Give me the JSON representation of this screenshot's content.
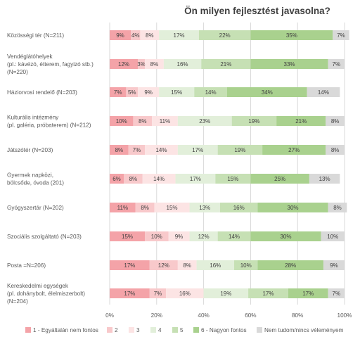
{
  "chart_data": {
    "type": "bar",
    "orientation": "horizontal",
    "stacked": "percent",
    "title": "Ön milyen fejlesztést javasolna?",
    "xlim": [
      0,
      100
    ],
    "x_ticks": [
      "0%",
      "20%",
      "40%",
      "60%",
      "80%",
      "100%"
    ],
    "grid": "vertical",
    "legend_position": "bottom",
    "categories": [
      [
        "Közösségi tér (N=211)"
      ],
      [
        "Vendéglátóhelyek",
        "(pl.: kávézó, étterem, fagyizó stb.)",
        "(N=220)"
      ],
      [
        "Háziorvosi rendelő (N=203)"
      ],
      [
        "Kulturális intézmény",
        "(pl. galéria, próbaterem) (N=212)"
      ],
      [
        "Játszótér (N=203)"
      ],
      [
        "Gyermek napközi,",
        "bölcsőde, óvoda (201)"
      ],
      [
        "Gyógyszertár (N=202)"
      ],
      [
        "Szociális szolgáltató (N=203)"
      ],
      [
        "Posta =N=206)"
      ],
      [
        "Kereskedelmi egységek",
        "(pl. dohánybolt, élelmiszerbolt)",
        "(N=204)"
      ]
    ],
    "series": [
      {
        "name": "1 - Egyáltalán nem fontos",
        "color": "#f4a3a8",
        "values": [
          9,
          12,
          7,
          10,
          8,
          6,
          11,
          15,
          17,
          17
        ]
      },
      {
        "name": "2",
        "color": "#f8c9cb",
        "values": [
          4,
          3,
          5,
          8,
          7,
          8,
          8,
          10,
          12,
          7
        ]
      },
      {
        "name": "3",
        "color": "#fce4e4",
        "values": [
          8,
          8,
          9,
          11,
          14,
          14,
          15,
          9,
          8,
          16
        ]
      },
      {
        "name": "4",
        "color": "#e2efda",
        "values": [
          17,
          16,
          15,
          23,
          17,
          17,
          13,
          12,
          16,
          19
        ]
      },
      {
        "name": "5",
        "color": "#c6e0b4",
        "values": [
          22,
          21,
          14,
          19,
          19,
          15,
          16,
          14,
          10,
          17
        ]
      },
      {
        "name": "6 - Nagyon fontos",
        "color": "#a9d18e",
        "values": [
          35,
          33,
          34,
          21,
          27,
          25,
          30,
          30,
          28,
          17
        ]
      },
      {
        "name": "Nem tudom/nincs véleményem",
        "color": "#d9d9d9",
        "values": [
          7,
          7,
          14,
          8,
          8,
          13,
          8,
          10,
          9,
          7
        ]
      }
    ],
    "value_suffix": "%"
  }
}
